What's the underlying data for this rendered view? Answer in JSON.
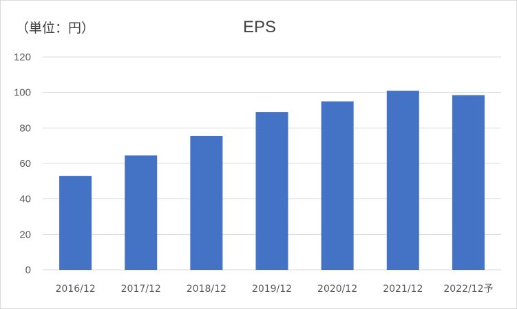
{
  "chart_data": {
    "type": "bar",
    "title": "EPS",
    "unit_label": "（単位：円）",
    "categories": [
      "2016/12",
      "2017/12",
      "2018/12",
      "2019/12",
      "2020/12",
      "2021/12",
      "2022/12予"
    ],
    "series": [
      {
        "values": [
          53,
          64.5,
          75.5,
          89,
          95,
          101,
          98.5
        ]
      }
    ],
    "ylim": [
      0,
      120
    ],
    "yticks": [
      0,
      20,
      40,
      60,
      80,
      100,
      120
    ],
    "grid": true,
    "legend": "none",
    "colors": {
      "bar": "#4472C4",
      "grid": "#D9D9D9",
      "text": "#595959"
    }
  }
}
